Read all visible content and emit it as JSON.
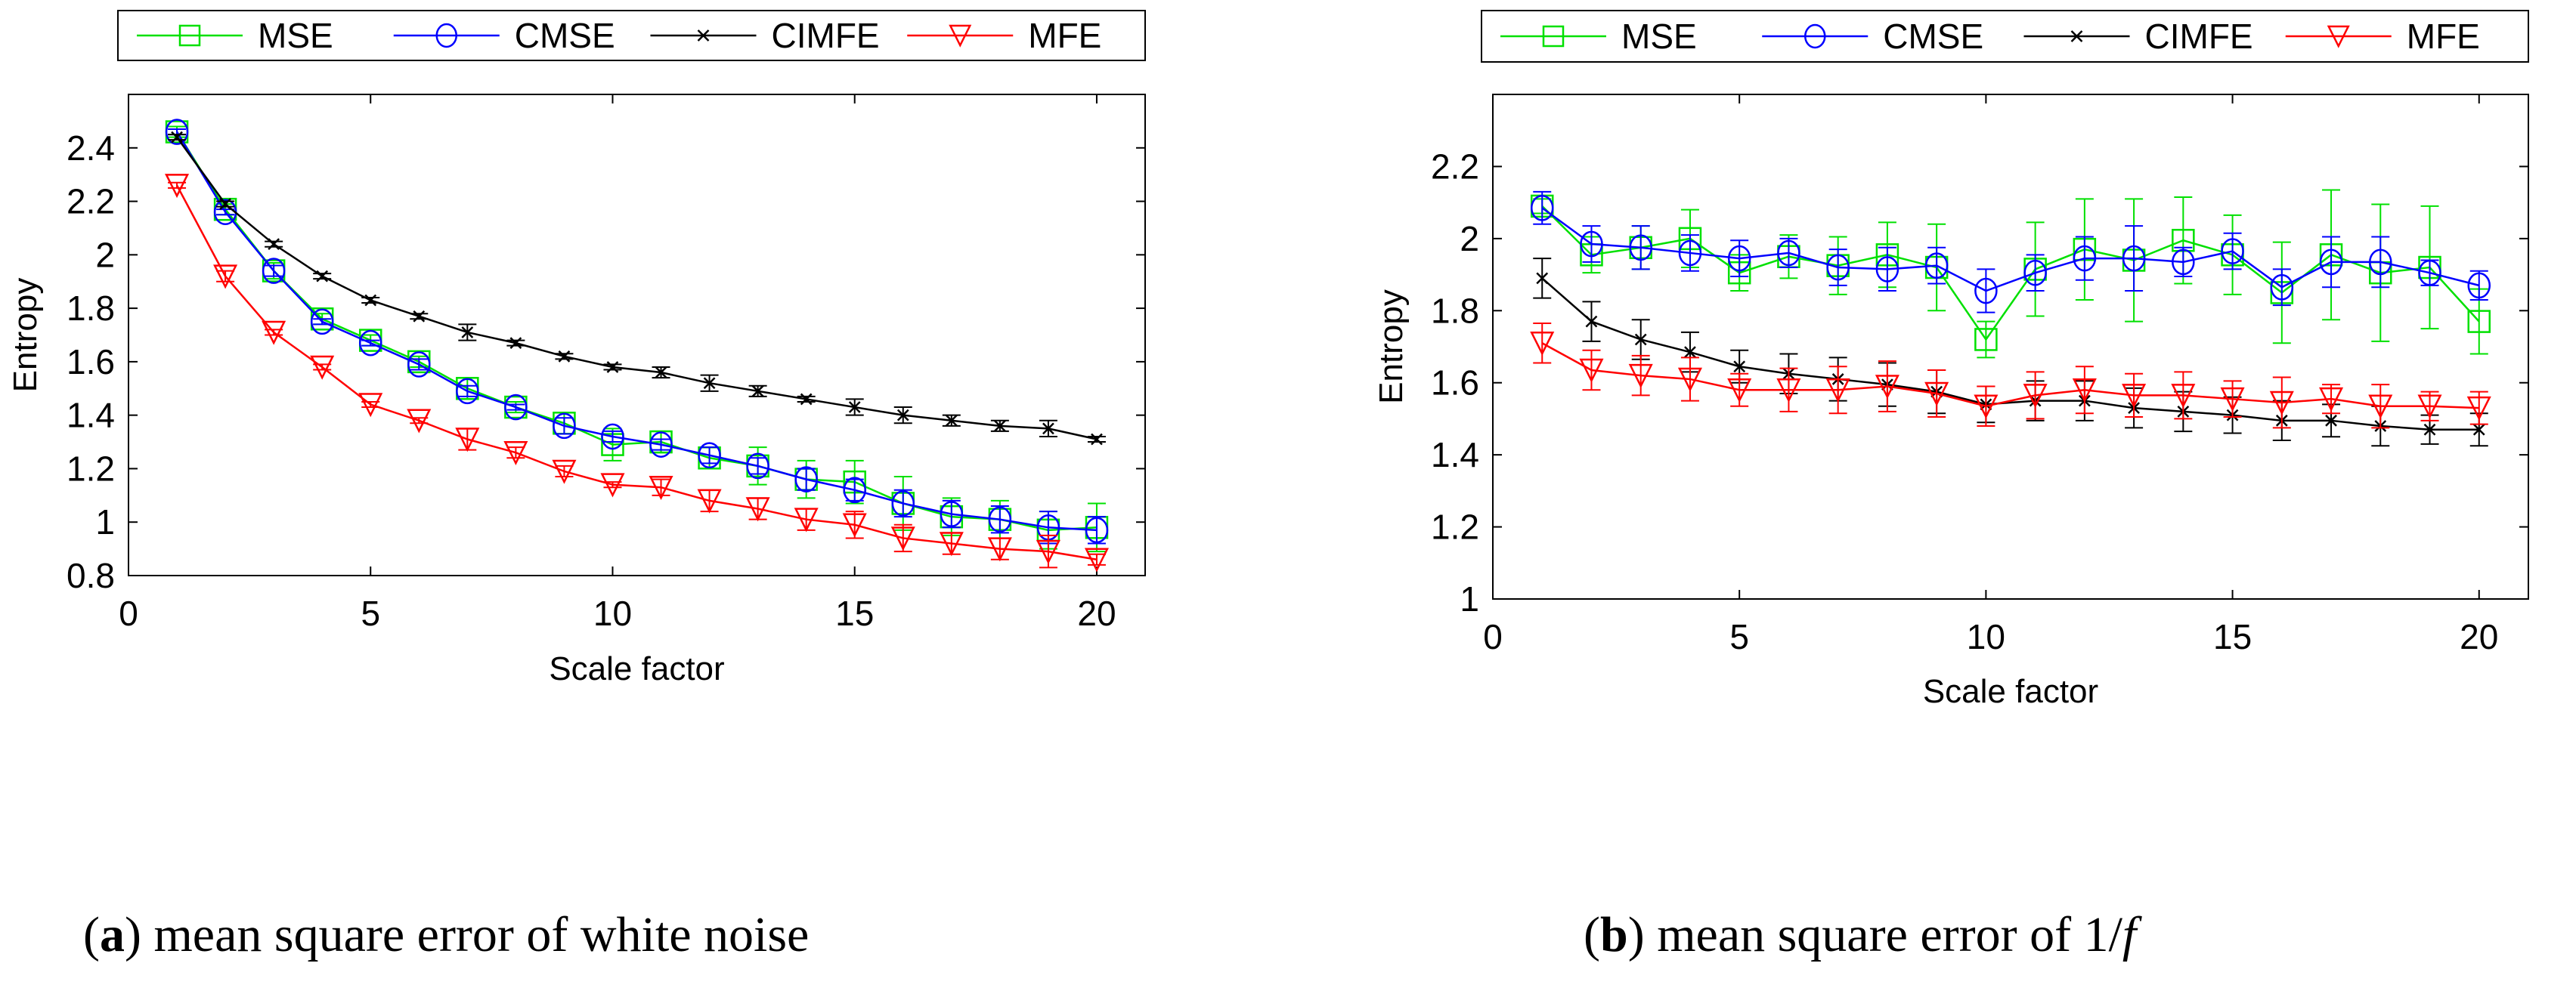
{
  "chart_data": [
    {
      "type": "line",
      "title": "",
      "caption_letter": "a",
      "caption_text": " mean square error of white noise",
      "xlabel": "Scale factor",
      "ylabel": "Entropy",
      "xlim": [
        0,
        21
      ],
      "ylim": [
        0.8,
        2.6
      ],
      "xticks": [
        0,
        5,
        10,
        15,
        20
      ],
      "yticks": [
        0.8,
        1,
        1.2,
        1.4,
        1.6,
        1.8,
        2,
        2.2,
        2.4
      ],
      "ytick_labels": [
        "0.8",
        "1",
        "1.2",
        "1.4",
        "1.6",
        "1.8",
        "2",
        "2.2",
        "2.4"
      ],
      "legend_position": "top",
      "x": [
        1,
        2,
        3,
        4,
        5,
        6,
        7,
        8,
        9,
        10,
        11,
        12,
        13,
        14,
        15,
        16,
        17,
        18,
        19,
        20
      ],
      "series": [
        {
          "name": "MSE",
          "color": "#00e000",
          "marker": "square",
          "values": [
            2.46,
            2.17,
            1.94,
            1.76,
            1.68,
            1.6,
            1.5,
            1.43,
            1.37,
            1.29,
            1.3,
            1.24,
            1.21,
            1.16,
            1.15,
            1.07,
            1.02,
            1.01,
            0.97,
            0.98
          ],
          "errors": [
            0.02,
            0.02,
            0.03,
            0.02,
            0.02,
            0.02,
            0.04,
            0.02,
            0.04,
            0.06,
            0.04,
            0.04,
            0.07,
            0.07,
            0.08,
            0.1,
            0.07,
            0.07,
            0.07,
            0.09
          ]
        },
        {
          "name": "CMSE",
          "color": "#0000ff",
          "marker": "circle",
          "values": [
            2.46,
            2.16,
            1.94,
            1.75,
            1.67,
            1.59,
            1.49,
            1.43,
            1.36,
            1.32,
            1.29,
            1.25,
            1.21,
            1.16,
            1.12,
            1.07,
            1.03,
            1.01,
            0.98,
            0.97
          ],
          "errors": [
            0.01,
            0.01,
            0.02,
            0.01,
            0.01,
            0.02,
            0.02,
            0.01,
            0.03,
            0.02,
            0.02,
            0.03,
            0.03,
            0.04,
            0.04,
            0.05,
            0.05,
            0.05,
            0.06,
            0.05
          ]
        },
        {
          "name": "CIMFE",
          "color": "#000000",
          "marker": "x",
          "values": [
            2.44,
            2.19,
            2.04,
            1.92,
            1.83,
            1.77,
            1.71,
            1.67,
            1.62,
            1.58,
            1.56,
            1.52,
            1.49,
            1.46,
            1.43,
            1.4,
            1.38,
            1.36,
            1.35,
            1.31
          ],
          "errors": [
            0.01,
            0.01,
            0.01,
            0.01,
            0.01,
            0.01,
            0.03,
            0.01,
            0.01,
            0.01,
            0.02,
            0.03,
            0.02,
            0.01,
            0.03,
            0.03,
            0.02,
            0.02,
            0.03,
            0.01
          ]
        },
        {
          "name": "MFE",
          "color": "#ff0000",
          "marker": "triangle-down",
          "values": [
            2.26,
            1.92,
            1.71,
            1.58,
            1.44,
            1.38,
            1.31,
            1.26,
            1.19,
            1.14,
            1.13,
            1.08,
            1.05,
            1.01,
            0.99,
            0.94,
            0.92,
            0.9,
            0.89,
            0.86
          ],
          "errors": [
            0.01,
            0.02,
            0.01,
            0.01,
            0.01,
            0.01,
            0.04,
            0.02,
            0.02,
            0.01,
            0.03,
            0.04,
            0.04,
            0.04,
            0.05,
            0.05,
            0.04,
            0.04,
            0.06,
            0.02
          ]
        }
      ]
    },
    {
      "type": "line",
      "title": "",
      "caption_letter": "b",
      "caption_text": " mean square error of 1/",
      "caption_italic": "f",
      "xlabel": "Scale factor",
      "ylabel": "Entropy",
      "xlim": [
        0,
        21
      ],
      "ylim": [
        1,
        2.4
      ],
      "xticks": [
        0,
        5,
        10,
        15,
        20
      ],
      "yticks": [
        1,
        1.2,
        1.4,
        1.6,
        1.8,
        2,
        2.2
      ],
      "ytick_labels": [
        "1",
        "1.2",
        "1.4",
        "1.6",
        "1.8",
        "2",
        "2.2"
      ],
      "legend_position": "top",
      "x": [
        1,
        2,
        3,
        4,
        5,
        6,
        7,
        8,
        9,
        10,
        11,
        12,
        13,
        14,
        15,
        16,
        17,
        18,
        19,
        20
      ],
      "series": [
        {
          "name": "MSE",
          "color": "#00e000",
          "marker": "square",
          "values": [
            2.09,
            1.955,
            1.975,
            2.0,
            1.905,
            1.95,
            1.925,
            1.955,
            1.92,
            1.72,
            1.915,
            1.97,
            1.94,
            1.995,
            1.955,
            1.85,
            1.955,
            1.905,
            1.92,
            1.77
          ],
          "errors": [
            0.02,
            0.05,
            0.06,
            0.08,
            0.05,
            0.06,
            0.08,
            0.09,
            0.12,
            0.05,
            0.13,
            0.14,
            0.17,
            0.12,
            0.11,
            0.14,
            0.18,
            0.19,
            0.17,
            0.09
          ]
        },
        {
          "name": "CMSE",
          "color": "#0000ff",
          "marker": "circle",
          "values": [
            2.085,
            1.985,
            1.975,
            1.96,
            1.945,
            1.96,
            1.92,
            1.915,
            1.925,
            1.855,
            1.905,
            1.945,
            1.945,
            1.935,
            1.965,
            1.865,
            1.935,
            1.935,
            1.905,
            1.87
          ],
          "errors": [
            0.045,
            0.05,
            0.06,
            0.05,
            0.05,
            0.04,
            0.05,
            0.06,
            0.05,
            0.06,
            0.05,
            0.06,
            0.09,
            0.04,
            0.05,
            0.05,
            0.07,
            0.07,
            0.035,
            0.04
          ]
        },
        {
          "name": "CIMFE",
          "color": "#000000",
          "marker": "x",
          "values": [
            1.89,
            1.77,
            1.72,
            1.685,
            1.645,
            1.625,
            1.61,
            1.595,
            1.575,
            1.54,
            1.55,
            1.55,
            1.53,
            1.52,
            1.51,
            1.495,
            1.495,
            1.48,
            1.47,
            1.47
          ],
          "errors": [
            0.055,
            0.055,
            0.055,
            0.055,
            0.045,
            0.055,
            0.06,
            0.06,
            0.06,
            0.05,
            0.055,
            0.055,
            0.055,
            0.055,
            0.05,
            0.055,
            0.045,
            0.055,
            0.04,
            0.045
          ]
        },
        {
          "name": "MFE",
          "color": "#ff0000",
          "marker": "triangle-down",
          "values": [
            1.71,
            1.635,
            1.62,
            1.61,
            1.58,
            1.58,
            1.58,
            1.59,
            1.57,
            1.535,
            1.565,
            1.58,
            1.565,
            1.565,
            1.555,
            1.545,
            1.555,
            1.535,
            1.535,
            1.53
          ],
          "errors": [
            0.055,
            0.055,
            0.055,
            0.06,
            0.045,
            0.06,
            0.065,
            0.07,
            0.065,
            0.055,
            0.065,
            0.065,
            0.06,
            0.065,
            0.05,
            0.07,
            0.04,
            0.06,
            0.04,
            0.045
          ]
        }
      ]
    }
  ]
}
